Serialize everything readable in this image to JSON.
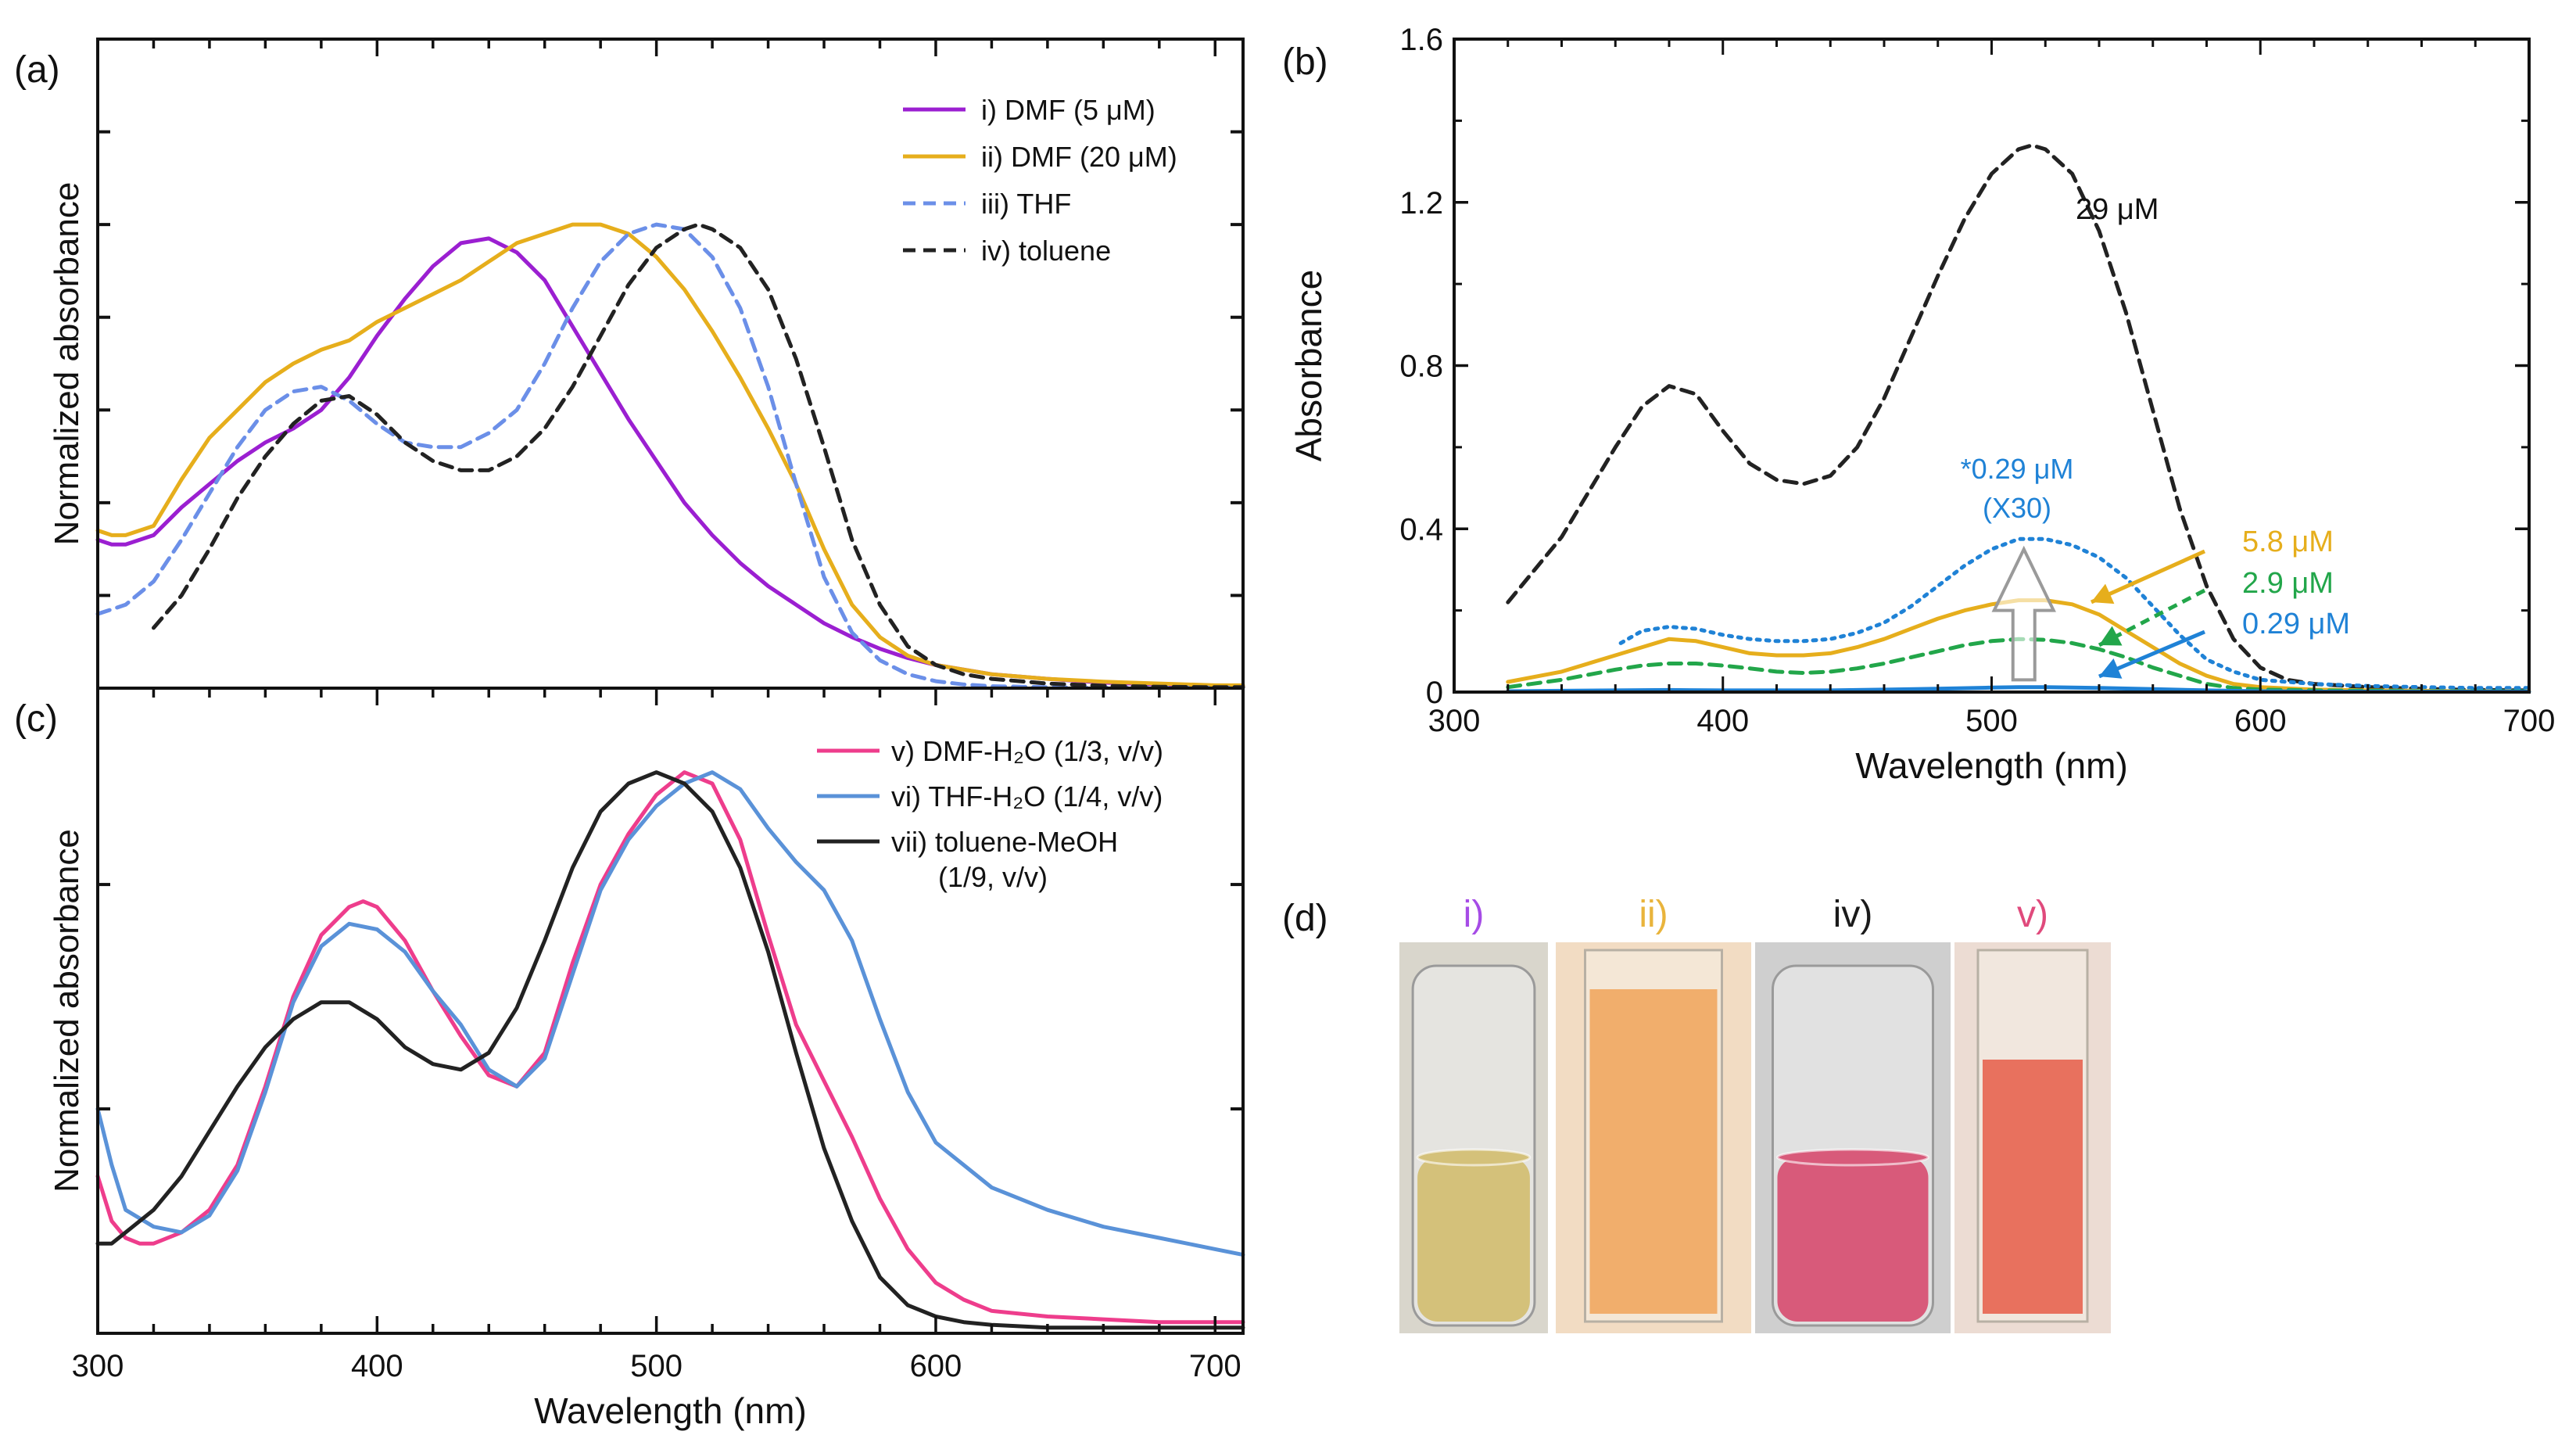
{
  "colors": {
    "purple": "#9b1fd1",
    "gold": "#e6ae1c",
    "lightblue": "#6b8fe8",
    "black": "#222222",
    "pink": "#ee3d8c",
    "blue": "#5a92d8",
    "green": "#22a64a",
    "cyan": "#1f82d6",
    "gray": "#9a9a9a"
  },
  "chart_data": [
    {
      "panel": "(a)",
      "type": "line",
      "xlabel": "",
      "ylabel": "Normalized absorbance",
      "xlim": [
        300,
        710
      ],
      "ylim": [
        0,
        1.4
      ],
      "y_tick_labels": "none",
      "legend_position": "top-right",
      "series": [
        {
          "name": "i) DMF (5 μM)",
          "color": "purple",
          "dash": "solid",
          "x": [
            300,
            305,
            310,
            320,
            330,
            340,
            350,
            360,
            370,
            380,
            390,
            400,
            410,
            420,
            430,
            440,
            450,
            460,
            470,
            480,
            490,
            500,
            510,
            520,
            530,
            540,
            550,
            560,
            570,
            580,
            590,
            600,
            620,
            640,
            660,
            680,
            700,
            710
          ],
          "y": [
            0.32,
            0.31,
            0.31,
            0.33,
            0.39,
            0.44,
            0.49,
            0.53,
            0.56,
            0.6,
            0.67,
            0.76,
            0.84,
            0.91,
            0.96,
            0.97,
            0.94,
            0.88,
            0.78,
            0.68,
            0.58,
            0.49,
            0.4,
            0.33,
            0.27,
            0.22,
            0.18,
            0.14,
            0.11,
            0.085,
            0.065,
            0.05,
            0.03,
            0.02,
            0.012,
            0.008,
            0.005,
            0.005
          ]
        },
        {
          "name": "ii) DMF (20 μM)",
          "color": "gold",
          "dash": "solid",
          "x": [
            300,
            305,
            310,
            320,
            330,
            340,
            350,
            360,
            370,
            380,
            390,
            400,
            410,
            420,
            430,
            440,
            450,
            460,
            470,
            480,
            490,
            500,
            510,
            520,
            530,
            540,
            550,
            560,
            570,
            580,
            590,
            600,
            610,
            620,
            640,
            660,
            680,
            700,
            710
          ],
          "y": [
            0.34,
            0.33,
            0.33,
            0.35,
            0.45,
            0.54,
            0.6,
            0.66,
            0.7,
            0.73,
            0.75,
            0.79,
            0.82,
            0.85,
            0.88,
            0.92,
            0.96,
            0.98,
            1.0,
            1.0,
            0.98,
            0.93,
            0.86,
            0.77,
            0.67,
            0.56,
            0.44,
            0.3,
            0.18,
            0.11,
            0.07,
            0.05,
            0.04,
            0.03,
            0.02,
            0.014,
            0.01,
            0.006,
            0.006
          ]
        },
        {
          "name": "iii) THF",
          "color": "lightblue",
          "dash": "dashed",
          "x": [
            300,
            310,
            320,
            330,
            340,
            350,
            360,
            370,
            380,
            390,
            400,
            410,
            420,
            430,
            440,
            450,
            460,
            470,
            480,
            490,
            500,
            510,
            520,
            530,
            540,
            550,
            560,
            570,
            580,
            590,
            600,
            610,
            620,
            640,
            660,
            680,
            700,
            710
          ],
          "y": [
            0.16,
            0.18,
            0.23,
            0.32,
            0.42,
            0.52,
            0.6,
            0.64,
            0.65,
            0.62,
            0.57,
            0.53,
            0.52,
            0.52,
            0.55,
            0.6,
            0.7,
            0.82,
            0.92,
            0.98,
            1.0,
            0.99,
            0.93,
            0.82,
            0.65,
            0.44,
            0.24,
            0.12,
            0.06,
            0.03,
            0.015,
            0.008,
            0.004,
            0.002,
            0.001,
            0.001,
            0.001,
            0.001
          ]
        },
        {
          "name": "iv) toluene",
          "color": "black",
          "dash": "dashed",
          "x": [
            320,
            330,
            340,
            350,
            360,
            370,
            380,
            390,
            400,
            410,
            420,
            430,
            440,
            450,
            460,
            470,
            480,
            490,
            500,
            510,
            515,
            520,
            530,
            540,
            550,
            560,
            570,
            580,
            590,
            600,
            610,
            620,
            640,
            660,
            680,
            700,
            710
          ],
          "y": [
            0.13,
            0.2,
            0.3,
            0.41,
            0.5,
            0.57,
            0.62,
            0.63,
            0.59,
            0.53,
            0.49,
            0.47,
            0.47,
            0.5,
            0.56,
            0.65,
            0.76,
            0.87,
            0.95,
            0.99,
            1.0,
            0.99,
            0.95,
            0.86,
            0.71,
            0.52,
            0.32,
            0.18,
            0.09,
            0.05,
            0.03,
            0.02,
            0.01,
            0.005,
            0.003,
            0.002,
            0.002
          ]
        }
      ]
    },
    {
      "panel": "(b)",
      "type": "line",
      "xlabel": "Wavelength (nm)",
      "ylabel": "Absorbance",
      "xlim": [
        300,
        700
      ],
      "ylim": [
        0,
        1.6
      ],
      "x_ticks": [
        300,
        400,
        500,
        600,
        700
      ],
      "y_ticks": [
        0,
        0.4,
        0.8,
        1.2,
        1.6
      ],
      "y_tick_labels": [
        "0",
        "0.4",
        "0.8",
        "1.2",
        "1.6"
      ],
      "legend_position": "none",
      "series": [
        {
          "name": "29 μM",
          "color": "black",
          "dash": "dashed",
          "x": [
            320,
            340,
            360,
            370,
            380,
            390,
            400,
            410,
            420,
            430,
            440,
            450,
            460,
            470,
            480,
            490,
            500,
            510,
            515,
            520,
            530,
            540,
            550,
            560,
            570,
            580,
            590,
            600,
            610,
            620,
            640,
            660,
            680,
            700
          ],
          "y": [
            0.22,
            0.38,
            0.6,
            0.7,
            0.75,
            0.73,
            0.64,
            0.56,
            0.52,
            0.51,
            0.53,
            0.6,
            0.72,
            0.87,
            1.02,
            1.16,
            1.27,
            1.33,
            1.34,
            1.33,
            1.27,
            1.13,
            0.93,
            0.69,
            0.45,
            0.26,
            0.13,
            0.06,
            0.03,
            0.02,
            0.012,
            0.008,
            0.005,
            0.004
          ]
        },
        {
          "name": "*0.29 μM (X30)",
          "color": "cyan",
          "dash": "dotted",
          "x": [
            362,
            370,
            380,
            390,
            400,
            410,
            420,
            430,
            440,
            450,
            460,
            470,
            480,
            490,
            500,
            510,
            520,
            530,
            540,
            550,
            560,
            570,
            580,
            590,
            600,
            620,
            640,
            660,
            680,
            700
          ],
          "y": [
            0.12,
            0.15,
            0.16,
            0.155,
            0.14,
            0.13,
            0.125,
            0.125,
            0.13,
            0.145,
            0.17,
            0.21,
            0.26,
            0.31,
            0.35,
            0.375,
            0.375,
            0.36,
            0.33,
            0.28,
            0.21,
            0.14,
            0.08,
            0.05,
            0.03,
            0.02,
            0.015,
            0.012,
            0.01,
            0.01
          ]
        },
        {
          "name": "5.8 μM",
          "color": "gold",
          "dash": "solid",
          "x": [
            320,
            340,
            360,
            370,
            380,
            390,
            400,
            410,
            420,
            430,
            440,
            450,
            460,
            470,
            480,
            490,
            500,
            510,
            520,
            530,
            540,
            550,
            560,
            570,
            580,
            590,
            600,
            620,
            640,
            660,
            680,
            700
          ],
          "y": [
            0.025,
            0.05,
            0.09,
            0.11,
            0.13,
            0.125,
            0.11,
            0.095,
            0.09,
            0.09,
            0.095,
            0.11,
            0.13,
            0.155,
            0.18,
            0.2,
            0.215,
            0.225,
            0.225,
            0.215,
            0.19,
            0.15,
            0.11,
            0.07,
            0.04,
            0.02,
            0.012,
            0.006,
            0.004,
            0.003,
            0.002,
            0.002
          ]
        },
        {
          "name": "2.9 μM",
          "color": "green",
          "dash": "dashed",
          "x": [
            320,
            340,
            360,
            370,
            380,
            390,
            400,
            410,
            420,
            430,
            440,
            450,
            460,
            470,
            480,
            490,
            500,
            510,
            520,
            530,
            540,
            550,
            560,
            570,
            580,
            590,
            600,
            620,
            640,
            660,
            680,
            700
          ],
          "y": [
            0.012,
            0.03,
            0.055,
            0.065,
            0.07,
            0.07,
            0.065,
            0.058,
            0.05,
            0.047,
            0.05,
            0.058,
            0.07,
            0.085,
            0.1,
            0.115,
            0.125,
            0.13,
            0.128,
            0.12,
            0.105,
            0.085,
            0.06,
            0.04,
            0.02,
            0.01,
            0.006,
            0.004,
            0.003,
            0.002,
            0.002,
            0.002
          ]
        },
        {
          "name": "0.29 μM",
          "color": "cyan",
          "dash": "solid",
          "x": [
            320,
            340,
            360,
            380,
            400,
            420,
            440,
            460,
            480,
            500,
            510,
            520,
            540,
            560,
            580,
            600,
            620,
            650,
            700
          ],
          "y": [
            0.002,
            0.003,
            0.004,
            0.005,
            0.004,
            0.004,
            0.004,
            0.006,
            0.008,
            0.011,
            0.012,
            0.012,
            0.01,
            0.007,
            0.004,
            0.002,
            0.001,
            0.001,
            0.001
          ]
        }
      ],
      "annotations": [
        "29 μM",
        "*0.29 μM",
        "(X30)",
        "5.8 μM",
        "2.9 μM",
        "0.29 μM"
      ]
    },
    {
      "panel": "(c)",
      "type": "line",
      "xlabel": "Wavelength (nm)",
      "ylabel": "Normalized absorbance",
      "xlim": [
        300,
        710
      ],
      "ylim": [
        0,
        1.15
      ],
      "x_ticks": [
        300,
        400,
        500,
        600,
        700
      ],
      "y_tick_labels": "none",
      "legend_position": "top-right",
      "series": [
        {
          "name": "v) DMF-H₂O (1/3, v/v)",
          "color": "pink",
          "dash": "solid",
          "x": [
            300,
            305,
            310,
            315,
            320,
            330,
            340,
            350,
            360,
            370,
            380,
            390,
            395,
            400,
            410,
            420,
            430,
            440,
            450,
            460,
            470,
            480,
            490,
            500,
            510,
            520,
            530,
            540,
            550,
            560,
            570,
            580,
            590,
            600,
            610,
            620,
            640,
            660,
            680,
            700,
            710
          ],
          "y": [
            0.28,
            0.2,
            0.17,
            0.16,
            0.16,
            0.18,
            0.22,
            0.3,
            0.44,
            0.6,
            0.71,
            0.76,
            0.77,
            0.76,
            0.7,
            0.61,
            0.53,
            0.46,
            0.44,
            0.5,
            0.66,
            0.8,
            0.89,
            0.96,
            1.0,
            0.98,
            0.88,
            0.71,
            0.55,
            0.45,
            0.35,
            0.24,
            0.15,
            0.09,
            0.06,
            0.04,
            0.03,
            0.025,
            0.02,
            0.02,
            0.02
          ]
        },
        {
          "name": "vi) THF-H₂O (1/4, v/v)",
          "color": "blue",
          "dash": "solid",
          "x": [
            300,
            305,
            310,
            320,
            330,
            340,
            350,
            360,
            370,
            380,
            390,
            400,
            410,
            420,
            430,
            440,
            450,
            460,
            470,
            480,
            490,
            500,
            510,
            520,
            530,
            540,
            550,
            560,
            570,
            580,
            590,
            600,
            620,
            640,
            660,
            680,
            700,
            710
          ],
          "y": [
            0.4,
            0.3,
            0.22,
            0.19,
            0.18,
            0.21,
            0.29,
            0.43,
            0.59,
            0.69,
            0.73,
            0.72,
            0.68,
            0.61,
            0.55,
            0.47,
            0.44,
            0.49,
            0.64,
            0.79,
            0.88,
            0.94,
            0.98,
            1.0,
            0.97,
            0.9,
            0.84,
            0.79,
            0.7,
            0.56,
            0.43,
            0.34,
            0.26,
            0.22,
            0.19,
            0.17,
            0.15,
            0.14
          ]
        },
        {
          "name": "vii) toluene-MeOH (1/9, v/v)",
          "color": "black",
          "dash": "solid",
          "x": [
            300,
            305,
            310,
            320,
            330,
            340,
            350,
            360,
            370,
            380,
            390,
            400,
            410,
            420,
            430,
            440,
            450,
            460,
            470,
            480,
            490,
            500,
            510,
            520,
            530,
            540,
            550,
            560,
            570,
            580,
            590,
            600,
            610,
            620,
            640,
            660,
            680,
            700,
            710
          ],
          "y": [
            0.16,
            0.16,
            0.18,
            0.22,
            0.28,
            0.36,
            0.44,
            0.51,
            0.56,
            0.59,
            0.59,
            0.56,
            0.51,
            0.48,
            0.47,
            0.5,
            0.58,
            0.7,
            0.83,
            0.93,
            0.98,
            1.0,
            0.98,
            0.93,
            0.83,
            0.68,
            0.5,
            0.33,
            0.2,
            0.1,
            0.05,
            0.03,
            0.02,
            0.015,
            0.01,
            0.01,
            0.01,
            0.01,
            0.01
          ]
        }
      ]
    }
  ],
  "panel_labels": {
    "a": "(a)",
    "b": "(b)",
    "c": "(c)",
    "d": "(d)"
  },
  "xaxis_label": "Wavelength (nm)",
  "legend_c_line2": "(1/9, v/v)",
  "photos": [
    {
      "label": "i)",
      "label_color": "#a64ce6",
      "liquid": "#d4c17a",
      "liquid_level": 0.58,
      "kind": "vial",
      "bg": "#d9d6cc"
    },
    {
      "label": "ii)",
      "label_color": "#e9b43c",
      "liquid": "#f1ae6c",
      "liquid_level": 0.12,
      "kind": "cuvette",
      "bg": "#f2dcc3"
    },
    {
      "label": "iv)",
      "label_color": "#1a1a1a",
      "liquid": "#d85a7a",
      "liquid_level": 0.5,
      "kind": "vial",
      "bg": "#cfcfcf"
    },
    {
      "label": "v)",
      "label_color": "#e04a7c",
      "liquid": "#e8715e",
      "liquid_level": 0.3,
      "kind": "cuvette",
      "bg": "#ecdcd3"
    }
  ]
}
